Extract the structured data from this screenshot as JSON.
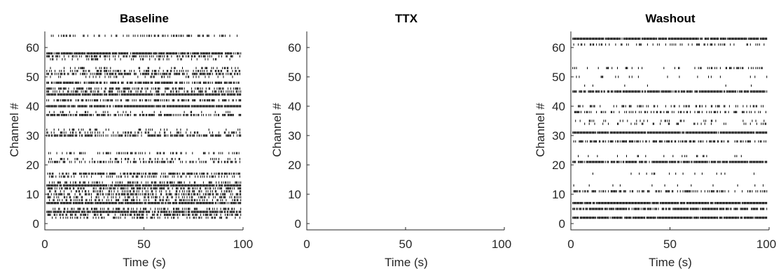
{
  "chart_data": [
    {
      "type": "raster",
      "title": "Baseline",
      "xlabel": "Time (s)",
      "ylabel": "Channel #",
      "xlim": [
        0,
        100
      ],
      "ylim": [
        -1,
        66
      ],
      "xticks": [
        "0",
        "50",
        "100"
      ],
      "yticks": [
        "0",
        "10",
        "20",
        "30",
        "40",
        "50",
        "60"
      ],
      "channels": [
        {
          "channel": 2,
          "density": 0.35
        },
        {
          "channel": 3,
          "density": 0.5
        },
        {
          "channel": 4,
          "density": 0.85
        },
        {
          "channel": 5,
          "density": 0.4
        },
        {
          "channel": 7,
          "density": 0.9
        },
        {
          "channel": 8,
          "density": 0.45
        },
        {
          "channel": 9,
          "density": 0.5
        },
        {
          "channel": 10,
          "density": 0.55
        },
        {
          "channel": 11,
          "density": 0.45
        },
        {
          "channel": 12,
          "density": 0.6
        },
        {
          "channel": 13,
          "density": 0.95
        },
        {
          "channel": 14,
          "density": 0.4
        },
        {
          "channel": 16,
          "density": 0.35
        },
        {
          "channel": 17,
          "density": 0.6
        },
        {
          "channel": 21,
          "density": 0.45
        },
        {
          "channel": 22,
          "density": 0.25
        },
        {
          "channel": 24,
          "density": 0.35
        },
        {
          "channel": 30,
          "density": 0.6
        },
        {
          "channel": 31,
          "density": 0.35
        },
        {
          "channel": 32,
          "density": 0.15
        },
        {
          "channel": 37,
          "density": 0.6
        },
        {
          "channel": 38,
          "density": 0.15
        },
        {
          "channel": 40,
          "density": 0.9
        },
        {
          "channel": 42,
          "density": 0.5
        },
        {
          "channel": 44,
          "density": 0.95
        },
        {
          "channel": 45,
          "density": 0.4
        },
        {
          "channel": 46,
          "density": 0.55
        },
        {
          "channel": 48,
          "density": 0.65
        },
        {
          "channel": 50,
          "density": 0.2
        },
        {
          "channel": 51,
          "density": 0.55
        },
        {
          "channel": 52,
          "density": 0.4
        },
        {
          "channel": 53,
          "density": 0.25
        },
        {
          "channel": 56,
          "density": 0.25
        },
        {
          "channel": 57,
          "density": 0.45
        },
        {
          "channel": 58,
          "density": 0.9
        },
        {
          "channel": 64,
          "density": 0.35
        }
      ]
    },
    {
      "type": "raster",
      "title": "TTX",
      "xlabel": "Time (s)",
      "ylabel": "Channel #",
      "xlim": [
        0,
        100
      ],
      "ylim": [
        -1,
        66
      ],
      "xticks": [
        "0",
        "50",
        "100"
      ],
      "yticks": [
        "0",
        "10",
        "20",
        "30",
        "40",
        "50",
        "60"
      ],
      "channels": []
    },
    {
      "type": "raster",
      "title": "Washout",
      "xlabel": "Time (s)",
      "ylabel": "Channel #",
      "xlim": [
        0,
        100
      ],
      "ylim": [
        -1,
        66
      ],
      "xticks": [
        "0",
        "50",
        "100"
      ],
      "yticks": [
        "0",
        "10",
        "20",
        "30",
        "40",
        "50",
        "60"
      ],
      "channels": [
        {
          "channel": 2,
          "density": 0.9
        },
        {
          "channel": 5,
          "density": 0.8
        },
        {
          "channel": 7,
          "density": 0.95
        },
        {
          "channel": 11,
          "density": 0.45
        },
        {
          "channel": 13,
          "density": 0.05
        },
        {
          "channel": 17,
          "density": 0.08
        },
        {
          "channel": 21,
          "density": 0.9
        },
        {
          "channel": 23,
          "density": 0.08
        },
        {
          "channel": 28,
          "density": 0.55
        },
        {
          "channel": 31,
          "density": 0.95
        },
        {
          "channel": 34,
          "density": 0.2
        },
        {
          "channel": 35,
          "density": 0.15
        },
        {
          "channel": 38,
          "density": 0.4
        },
        {
          "channel": 40,
          "density": 0.3
        },
        {
          "channel": 45,
          "density": 0.85
        },
        {
          "channel": 47,
          "density": 0.03
        },
        {
          "channel": 50,
          "density": 0.08
        },
        {
          "channel": 53,
          "density": 0.2
        },
        {
          "channel": 61,
          "density": 0.25
        },
        {
          "channel": 63,
          "density": 0.95
        }
      ]
    }
  ]
}
